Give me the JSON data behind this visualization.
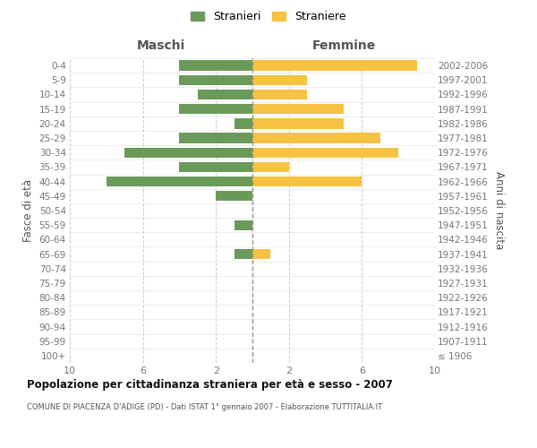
{
  "age_groups": [
    "100+",
    "95-99",
    "90-94",
    "85-89",
    "80-84",
    "75-79",
    "70-74",
    "65-69",
    "60-64",
    "55-59",
    "50-54",
    "45-49",
    "40-44",
    "35-39",
    "30-34",
    "25-29",
    "20-24",
    "15-19",
    "10-14",
    "5-9",
    "0-4"
  ],
  "birth_years": [
    "≤ 1906",
    "1907-1911",
    "1912-1916",
    "1917-1921",
    "1922-1926",
    "1927-1931",
    "1932-1936",
    "1937-1941",
    "1942-1946",
    "1947-1951",
    "1952-1956",
    "1957-1961",
    "1962-1966",
    "1967-1971",
    "1972-1976",
    "1977-1981",
    "1982-1986",
    "1987-1991",
    "1992-1996",
    "1997-2001",
    "2002-2006"
  ],
  "maschi": [
    0,
    0,
    0,
    0,
    0,
    0,
    0,
    1,
    0,
    1,
    0,
    2,
    8,
    4,
    7,
    4,
    1,
    4,
    3,
    4,
    4
  ],
  "femmine": [
    0,
    0,
    0,
    0,
    0,
    0,
    0,
    1,
    0,
    0,
    0,
    0,
    6,
    2,
    8,
    7,
    5,
    5,
    3,
    3,
    9
  ],
  "color_maschi": "#6a9a5a",
  "color_femmine": "#f5c242",
  "title": "Popolazione per cittadinanza straniera per età e sesso - 2007",
  "subtitle": "COMUNE DI PIACENZA D'ADIGE (PD) - Dati ISTAT 1° gennaio 2007 - Elaborazione TUTTITALIA.IT",
  "xlabel_left": "Maschi",
  "xlabel_right": "Femmine",
  "ylabel_left": "Fasce di età",
  "ylabel_right": "Anni di nascita",
  "legend_maschi": "Stranieri",
  "legend_femmine": "Straniere",
  "xlim": 10,
  "background_color": "#ffffff",
  "grid_color": "#cccccc"
}
